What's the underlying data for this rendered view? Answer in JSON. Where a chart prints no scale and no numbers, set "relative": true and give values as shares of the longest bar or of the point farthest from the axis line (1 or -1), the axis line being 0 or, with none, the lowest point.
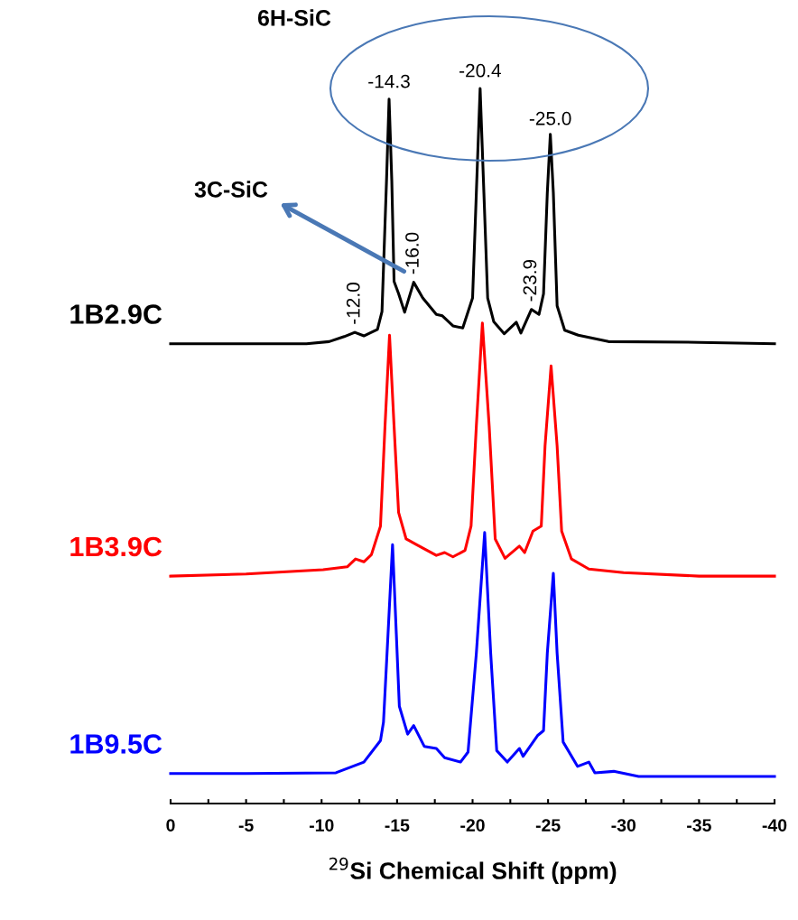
{
  "chart_data": {
    "type": "line",
    "relative": true,
    "xlabel": "$^{29}$Si Chemical Shift (ppm)",
    "xlim": [
      0,
      -40
    ],
    "xticks": [
      0,
      {
        "value": -2.5,
        "label": null
      },
      -5,
      {
        "value": -7.5,
        "label": null
      },
      -10,
      {
        "value": -12.5,
        "label": null
      },
      -15,
      {
        "value": -17.5,
        "label": null
      },
      -20,
      {
        "value": -22.5,
        "label": null
      },
      -25,
      {
        "value": -27.5,
        "label": null
      },
      -30,
      {
        "value": -32.5,
        "label": null
      },
      -35,
      {
        "value": -37.5,
        "label": null
      },
      -40
    ],
    "grid": false,
    "legend": false,
    "marker": "none",
    "line_style": "solid",
    "annotations": [
      "6H-SiC",
      "3C-SiC",
      {
        "text": "-14.3",
        "x": -14.47,
        "y": 0.985
      },
      {
        "text": "-20.4",
        "x": -20.5,
        "y": 1.0
      },
      {
        "text": "-25.0",
        "x": -25.15,
        "y": 0.933
      },
      {
        "text": "-12.0",
        "x": -12.2,
        "y": 0.659
      },
      {
        "text": "-16.0",
        "x": -16.1,
        "y": 0.729
      },
      {
        "text": "-23.9",
        "x": -23.9,
        "y": 0.691
      }
    ],
    "series": [
      {
        "name": "1B2.9C",
        "color": "#000000",
        "x": [
          0,
          -5,
          -9,
          -10.5,
          -11.5,
          -12.2,
          -12.8,
          -13.2,
          -13.7,
          -14.0,
          -14.3,
          -14.47,
          -14.65,
          -14.8,
          -15.1,
          -15.5,
          -16.1,
          -16.7,
          -17.6,
          -18.0,
          -18.7,
          -19.35,
          -20.0,
          -20.25,
          -20.5,
          -20.75,
          -21.0,
          -21.4,
          -22.1,
          -22.9,
          -23.2,
          -23.9,
          -24.4,
          -24.7,
          -24.95,
          -25.15,
          -25.35,
          -25.6,
          -26.1,
          -27.0,
          -29,
          -35,
          -40
        ],
        "values": [
          0.643,
          0.643,
          0.643,
          0.646,
          0.653,
          0.659,
          0.654,
          0.658,
          0.663,
          0.688,
          0.871,
          0.985,
          0.871,
          0.73,
          0.713,
          0.687,
          0.729,
          0.707,
          0.684,
          0.682,
          0.668,
          0.665,
          0.707,
          0.854,
          1.0,
          0.854,
          0.707,
          0.674,
          0.657,
          0.673,
          0.658,
          0.691,
          0.684,
          0.713,
          0.854,
          0.936,
          0.854,
          0.696,
          0.662,
          0.655,
          0.646,
          0.645,
          0.643
        ]
      },
      {
        "name": "1B3.9C",
        "color": "#ff0000",
        "x": [
          0,
          -5,
          -10.1,
          -11.7,
          -12.25,
          -12.8,
          -13.3,
          -13.9,
          -14.2,
          -14.5,
          -14.8,
          -15.1,
          -15.6,
          -16.3,
          -17.6,
          -18.15,
          -18.7,
          -19.5,
          -19.9,
          -20.25,
          -20.65,
          -21.1,
          -21.5,
          -22.15,
          -23.1,
          -23.45,
          -24.0,
          -24.55,
          -24.8,
          -25.2,
          -25.6,
          -25.9,
          -26.55,
          -27.7,
          -30,
          -35,
          -40
        ],
        "values": [
          0.318,
          0.321,
          0.327,
          0.331,
          0.342,
          0.338,
          0.348,
          0.388,
          0.528,
          0.655,
          0.528,
          0.407,
          0.37,
          0.362,
          0.347,
          0.351,
          0.345,
          0.354,
          0.388,
          0.528,
          0.672,
          0.528,
          0.37,
          0.343,
          0.36,
          0.351,
          0.381,
          0.388,
          0.5,
          0.612,
          0.5,
          0.381,
          0.342,
          0.328,
          0.323,
          0.318,
          0.318
        ]
      },
      {
        "name": "1B9.5C",
        "color": "#0000ff",
        "x": [
          0,
          -5,
          -10.95,
          -12.8,
          -13.9,
          -14.1,
          -14.4,
          -14.7,
          -14.95,
          -15.15,
          -15.7,
          -16.1,
          -16.8,
          -17.6,
          -18.15,
          -19.2,
          -19.7,
          -20.25,
          -20.8,
          -21.2,
          -21.6,
          -22.3,
          -23.1,
          -23.35,
          -24.3,
          -24.7,
          -24.95,
          -25.35,
          -25.6,
          -26.0,
          -26.95,
          -27.7,
          -28.1,
          -29.35,
          -31,
          -40
        ],
        "values": [
          0.042,
          0.042,
          0.043,
          0.058,
          0.088,
          0.114,
          0.237,
          0.362,
          0.237,
          0.136,
          0.097,
          0.109,
          0.08,
          0.077,
          0.064,
          0.058,
          0.072,
          0.21,
          0.379,
          0.21,
          0.074,
          0.058,
          0.077,
          0.066,
          0.095,
          0.102,
          0.21,
          0.322,
          0.21,
          0.086,
          0.052,
          0.058,
          0.043,
          0.045,
          0.038,
          0.038
        ]
      }
    ]
  }
}
